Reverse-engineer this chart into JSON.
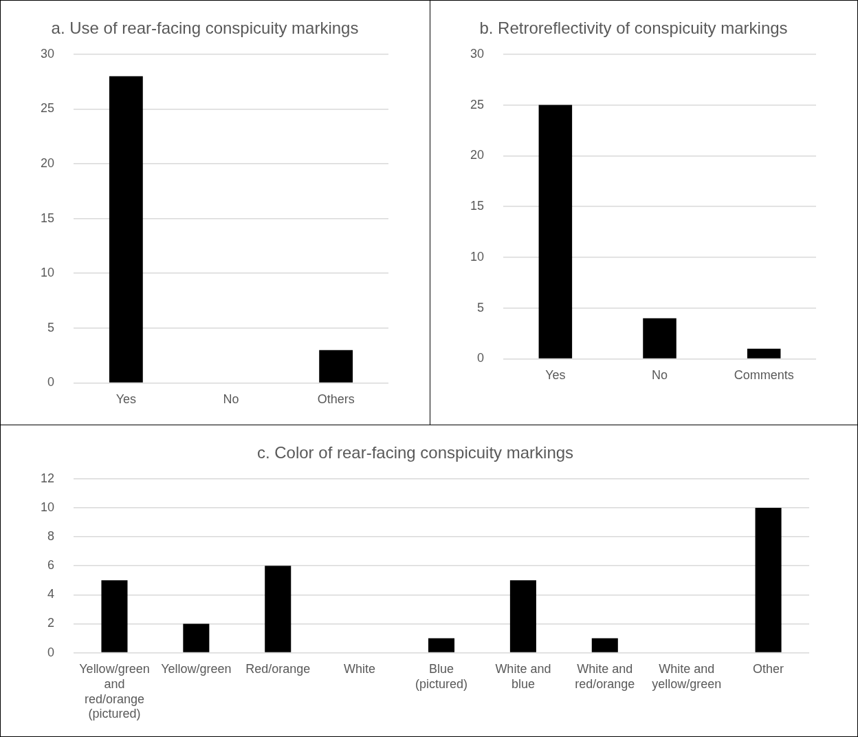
{
  "chart_data": [
    {
      "type": "bar",
      "title": "a. Use of rear-facing conspicuity markings",
      "categories": [
        "Yes",
        "No",
        "Others"
      ],
      "values": [
        28,
        0,
        3
      ],
      "color": "#000000",
      "ylim": [
        0,
        30
      ],
      "yticks": [
        0,
        5,
        10,
        15,
        20,
        25,
        30
      ],
      "grid": "y"
    },
    {
      "type": "bar",
      "title": "b. Retroreflectivity of conspicuity markings",
      "categories": [
        "Yes",
        "No",
        "Comments"
      ],
      "values": [
        25,
        4,
        1
      ],
      "color": "#000000",
      "ylim": [
        0,
        30
      ],
      "yticks": [
        0,
        5,
        10,
        15,
        20,
        25,
        30
      ],
      "grid": "y"
    },
    {
      "type": "bar",
      "title": "c. Color of rear-facing conspicuity markings",
      "categories": [
        "Yellow/green and red/orange (pictured)",
        "Yellow/green",
        "Red/orange",
        "White",
        "Blue (pictured)",
        "White and blue",
        "White and red/orange",
        "White and yellow/green",
        "Other"
      ],
      "values": [
        5,
        2,
        6,
        0,
        1,
        5,
        1,
        0,
        10
      ],
      "color": "#000000",
      "ylim": [
        0,
        12
      ],
      "yticks": [
        0,
        2,
        4,
        6,
        8,
        10,
        12
      ],
      "grid": "y"
    }
  ]
}
